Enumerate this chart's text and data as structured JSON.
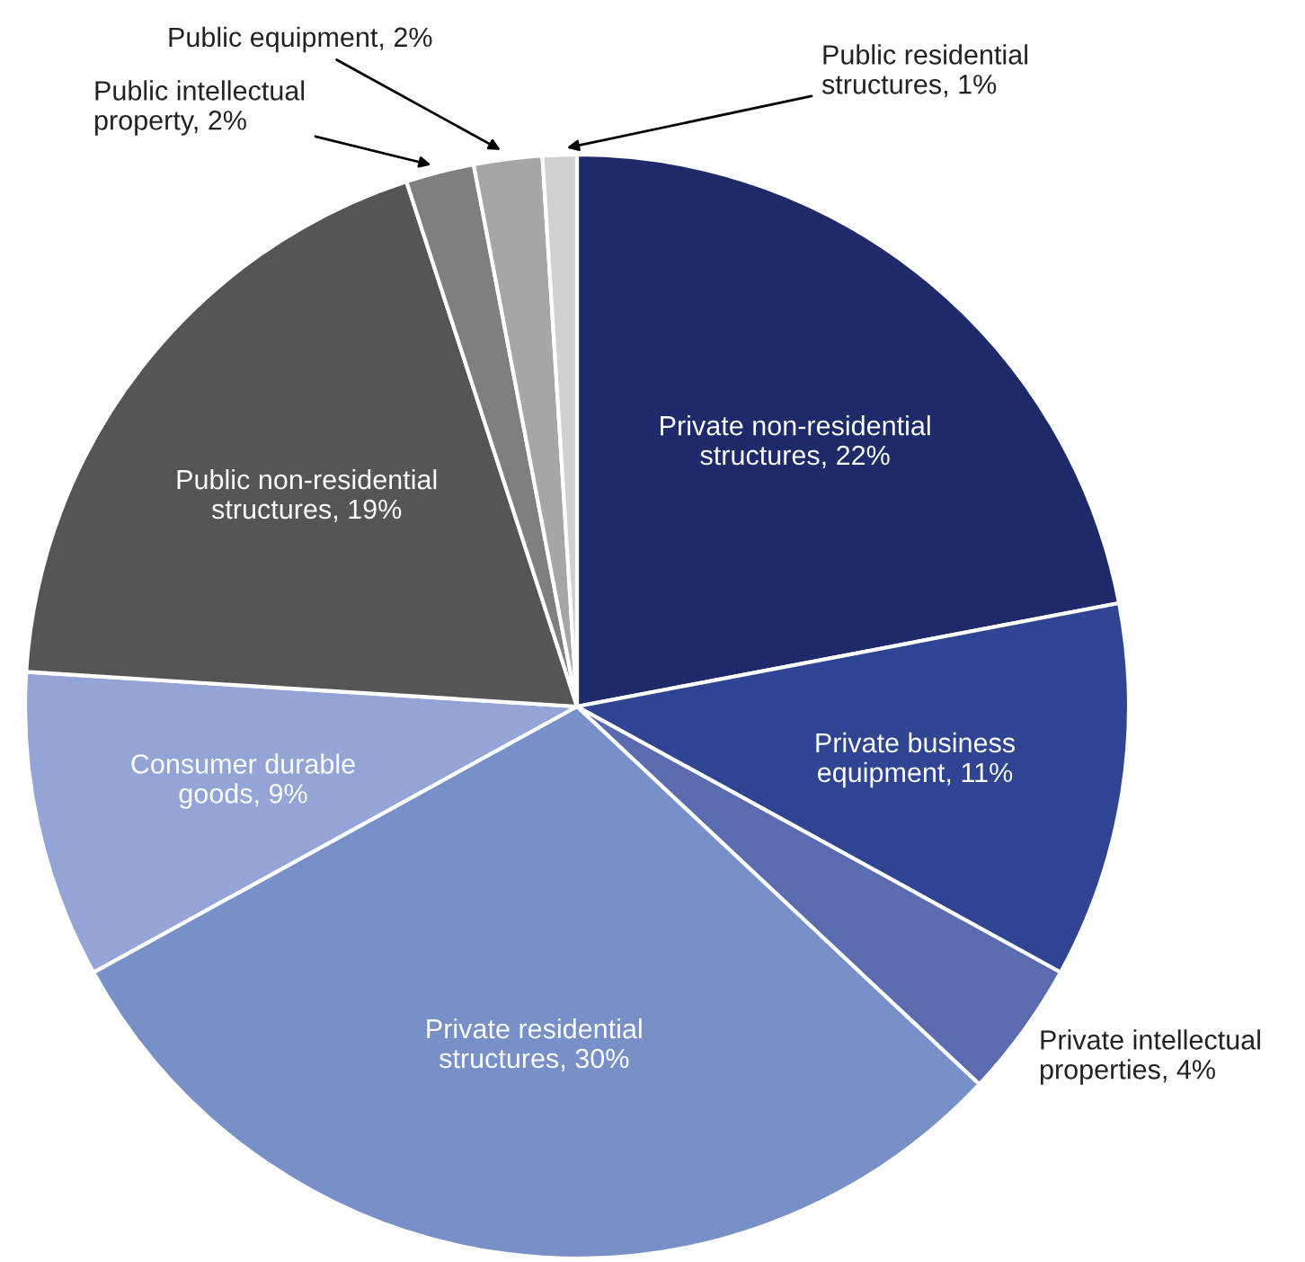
{
  "chart_data": {
    "type": "pie",
    "categories": [
      "Private non-residential structures",
      "Private business equipment",
      "Private intellectual properties",
      "Private residential structures",
      "Consumer durable goods",
      "Public non-residential structures",
      "Public intellectual property",
      "Public equipment",
      "Public residential structures"
    ],
    "values": [
      22,
      11,
      4,
      30,
      9,
      19,
      2,
      2,
      1
    ],
    "value_labels": [
      "22%",
      "11%",
      "4%",
      "30%",
      "9%",
      "19%",
      "2%",
      "2%",
      "1%"
    ],
    "colors": [
      "#1f2a6b",
      "#2f4594",
      "#5a6bb0",
      "#7890c8",
      "#93a5d6",
      "#555555",
      "#7f7f7f",
      "#a6a6a6",
      "#d0d0d0"
    ]
  }
}
